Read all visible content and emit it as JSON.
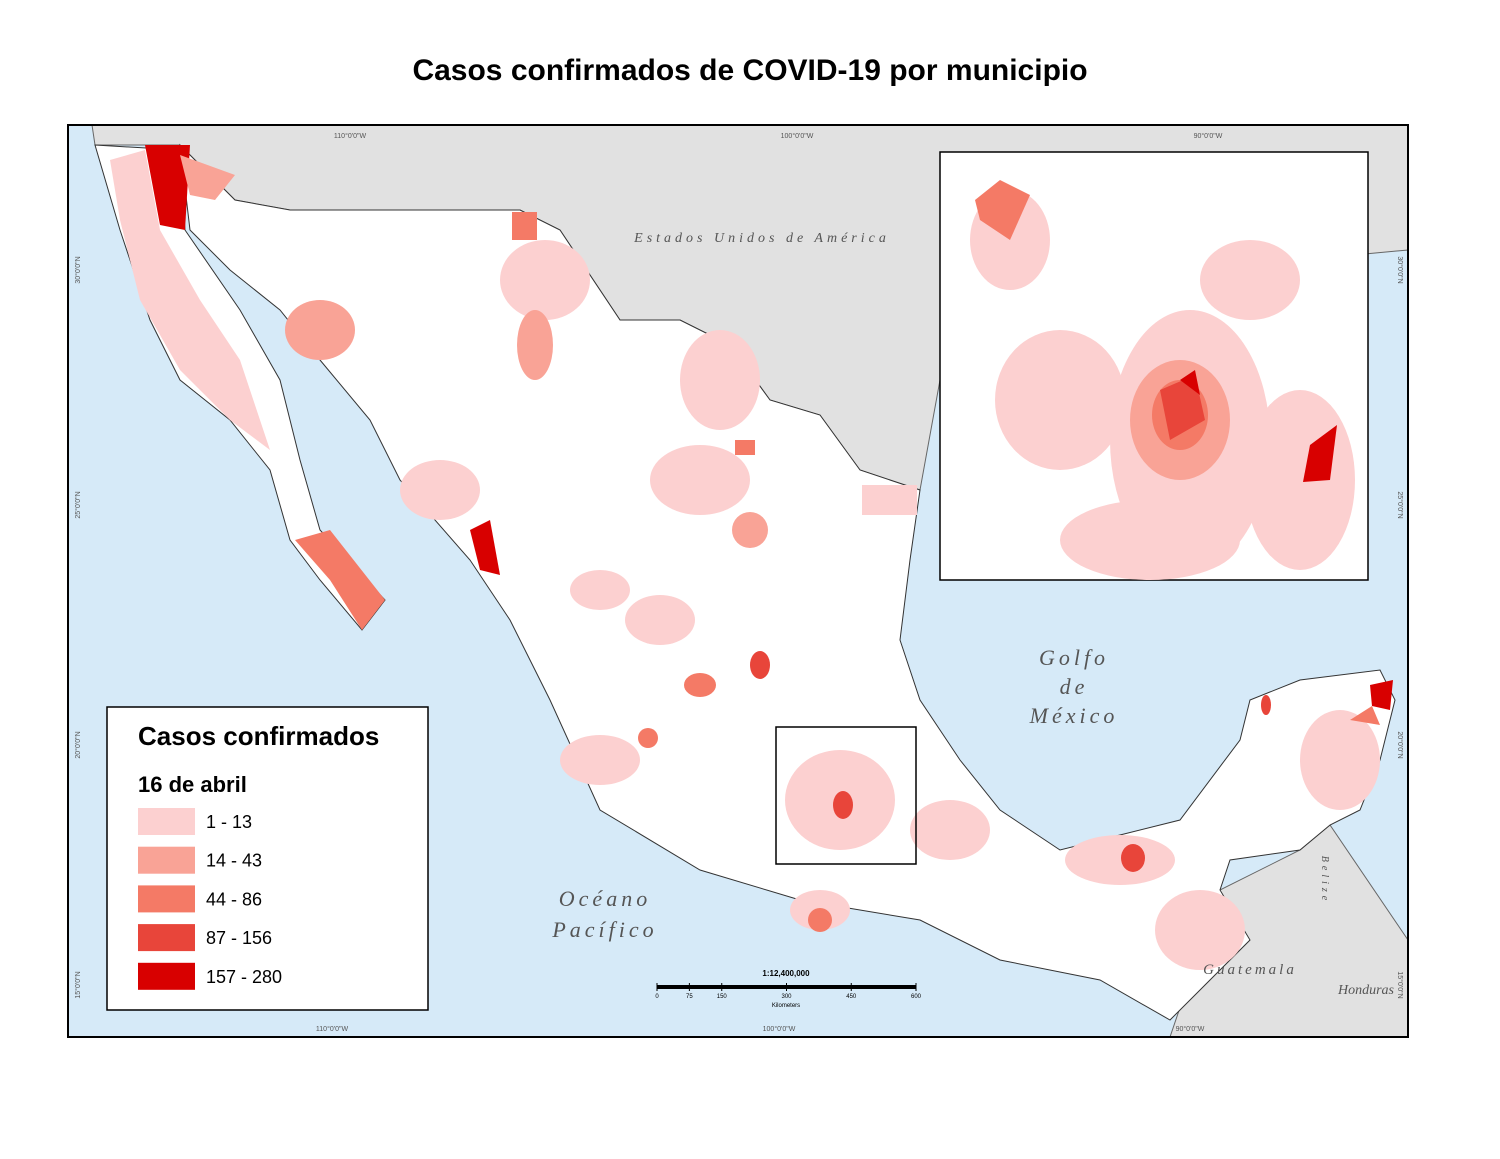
{
  "title": "Casos confirmados de COVID-19 por municipio",
  "legend": {
    "title": "Casos confirmados",
    "subtitle": "16 de abril",
    "classes": [
      {
        "label": "1 - 13",
        "color": "#fcd0d0"
      },
      {
        "label": "14 - 43",
        "color": "#f9a396"
      },
      {
        "label": "44 - 86",
        "color": "#f47a66"
      },
      {
        "label": "87 - 156",
        "color": "#e8453a"
      },
      {
        "label": "157 - 280",
        "color": "#d80000"
      }
    ]
  },
  "labels": {
    "usa": "Estados Unidos de América",
    "gulf": [
      "Golfo",
      "de",
      "México"
    ],
    "ocean": [
      "Océano",
      "Pacífico"
    ],
    "belize": "Belize",
    "guatemala": "Guatemala",
    "honduras": "Honduras"
  },
  "graticule": {
    "top": [
      "110°0'0\"W",
      "100°0'0\"W",
      "90°0'0\"W"
    ],
    "bottom": [
      "110°0'0\"W",
      "100°0'0\"W",
      "90°0'0\"W"
    ],
    "left": [
      "30°0'0\"N",
      "25°0'0\"N",
      "20°0'0\"N",
      "15°0'0\"N"
    ],
    "right": [
      "30°0'0\"N",
      "25°0'0\"N",
      "20°0'0\"N",
      "15°0'0\"N"
    ]
  },
  "scale": {
    "ratio": "1:12,400,000",
    "ticks": [
      0,
      75,
      150,
      300,
      450,
      600
    ],
    "unit": "Kilometers"
  }
}
